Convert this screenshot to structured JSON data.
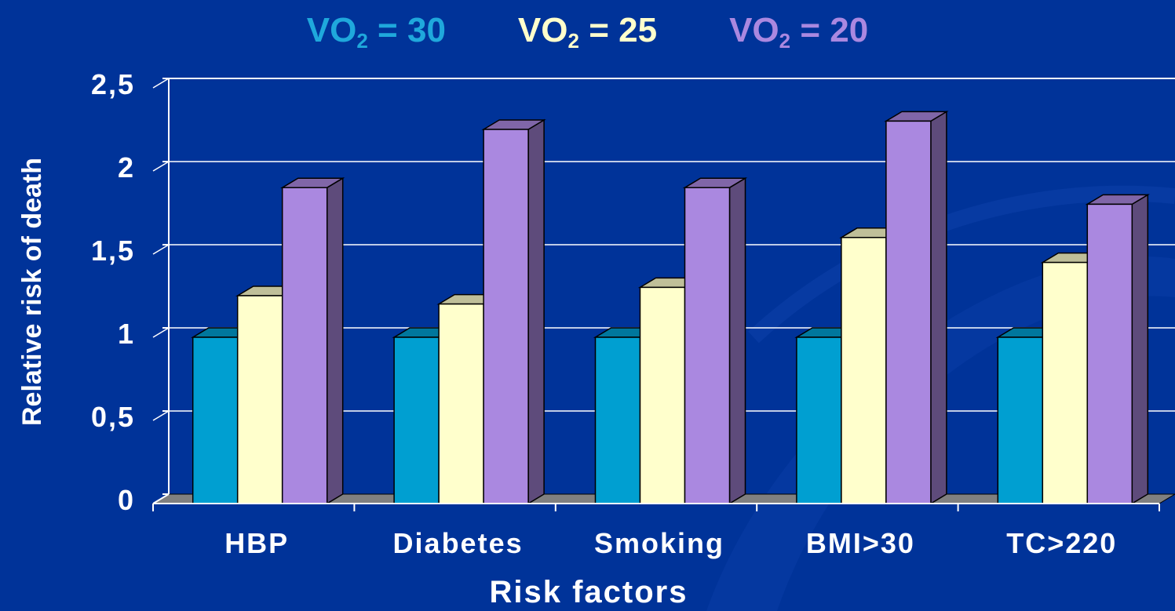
{
  "chart_data": {
    "type": "bar",
    "style": "3d-clustered",
    "categories": [
      "HBP",
      "Diabetes",
      "Smoking",
      "BMI>30",
      "TC>220"
    ],
    "series": [
      {
        "name": "VO₂ = 30",
        "name_main": "VO",
        "name_sub": "2",
        "name_rest": " = 30",
        "color": "#009FD1",
        "values": [
          1,
          1,
          1,
          1,
          1
        ]
      },
      {
        "name": "VO₂ = 25",
        "name_main": "VO",
        "name_sub": "2",
        "name_rest": " = 25",
        "color": "#FFFFCC",
        "values": [
          1.25,
          1.2,
          1.3,
          1.6,
          1.45
        ]
      },
      {
        "name": "VO₂ = 20",
        "name_main": "VO",
        "name_sub": "2",
        "name_rest": " = 20",
        "color": "#AA88E0",
        "values": [
          1.9,
          2.25,
          1.9,
          2.3,
          1.8
        ]
      }
    ],
    "xlabel": "Risk factors",
    "ylabel": "Relative risk of death",
    "ylim": [
      0,
      2.5
    ],
    "yticks": [
      "0",
      "0,5",
      "1",
      "1,5",
      "2",
      "2,5"
    ],
    "ytick_values": [
      0,
      0.5,
      1,
      1.5,
      2,
      2.5
    ],
    "grid": true,
    "legend_position": "top"
  }
}
